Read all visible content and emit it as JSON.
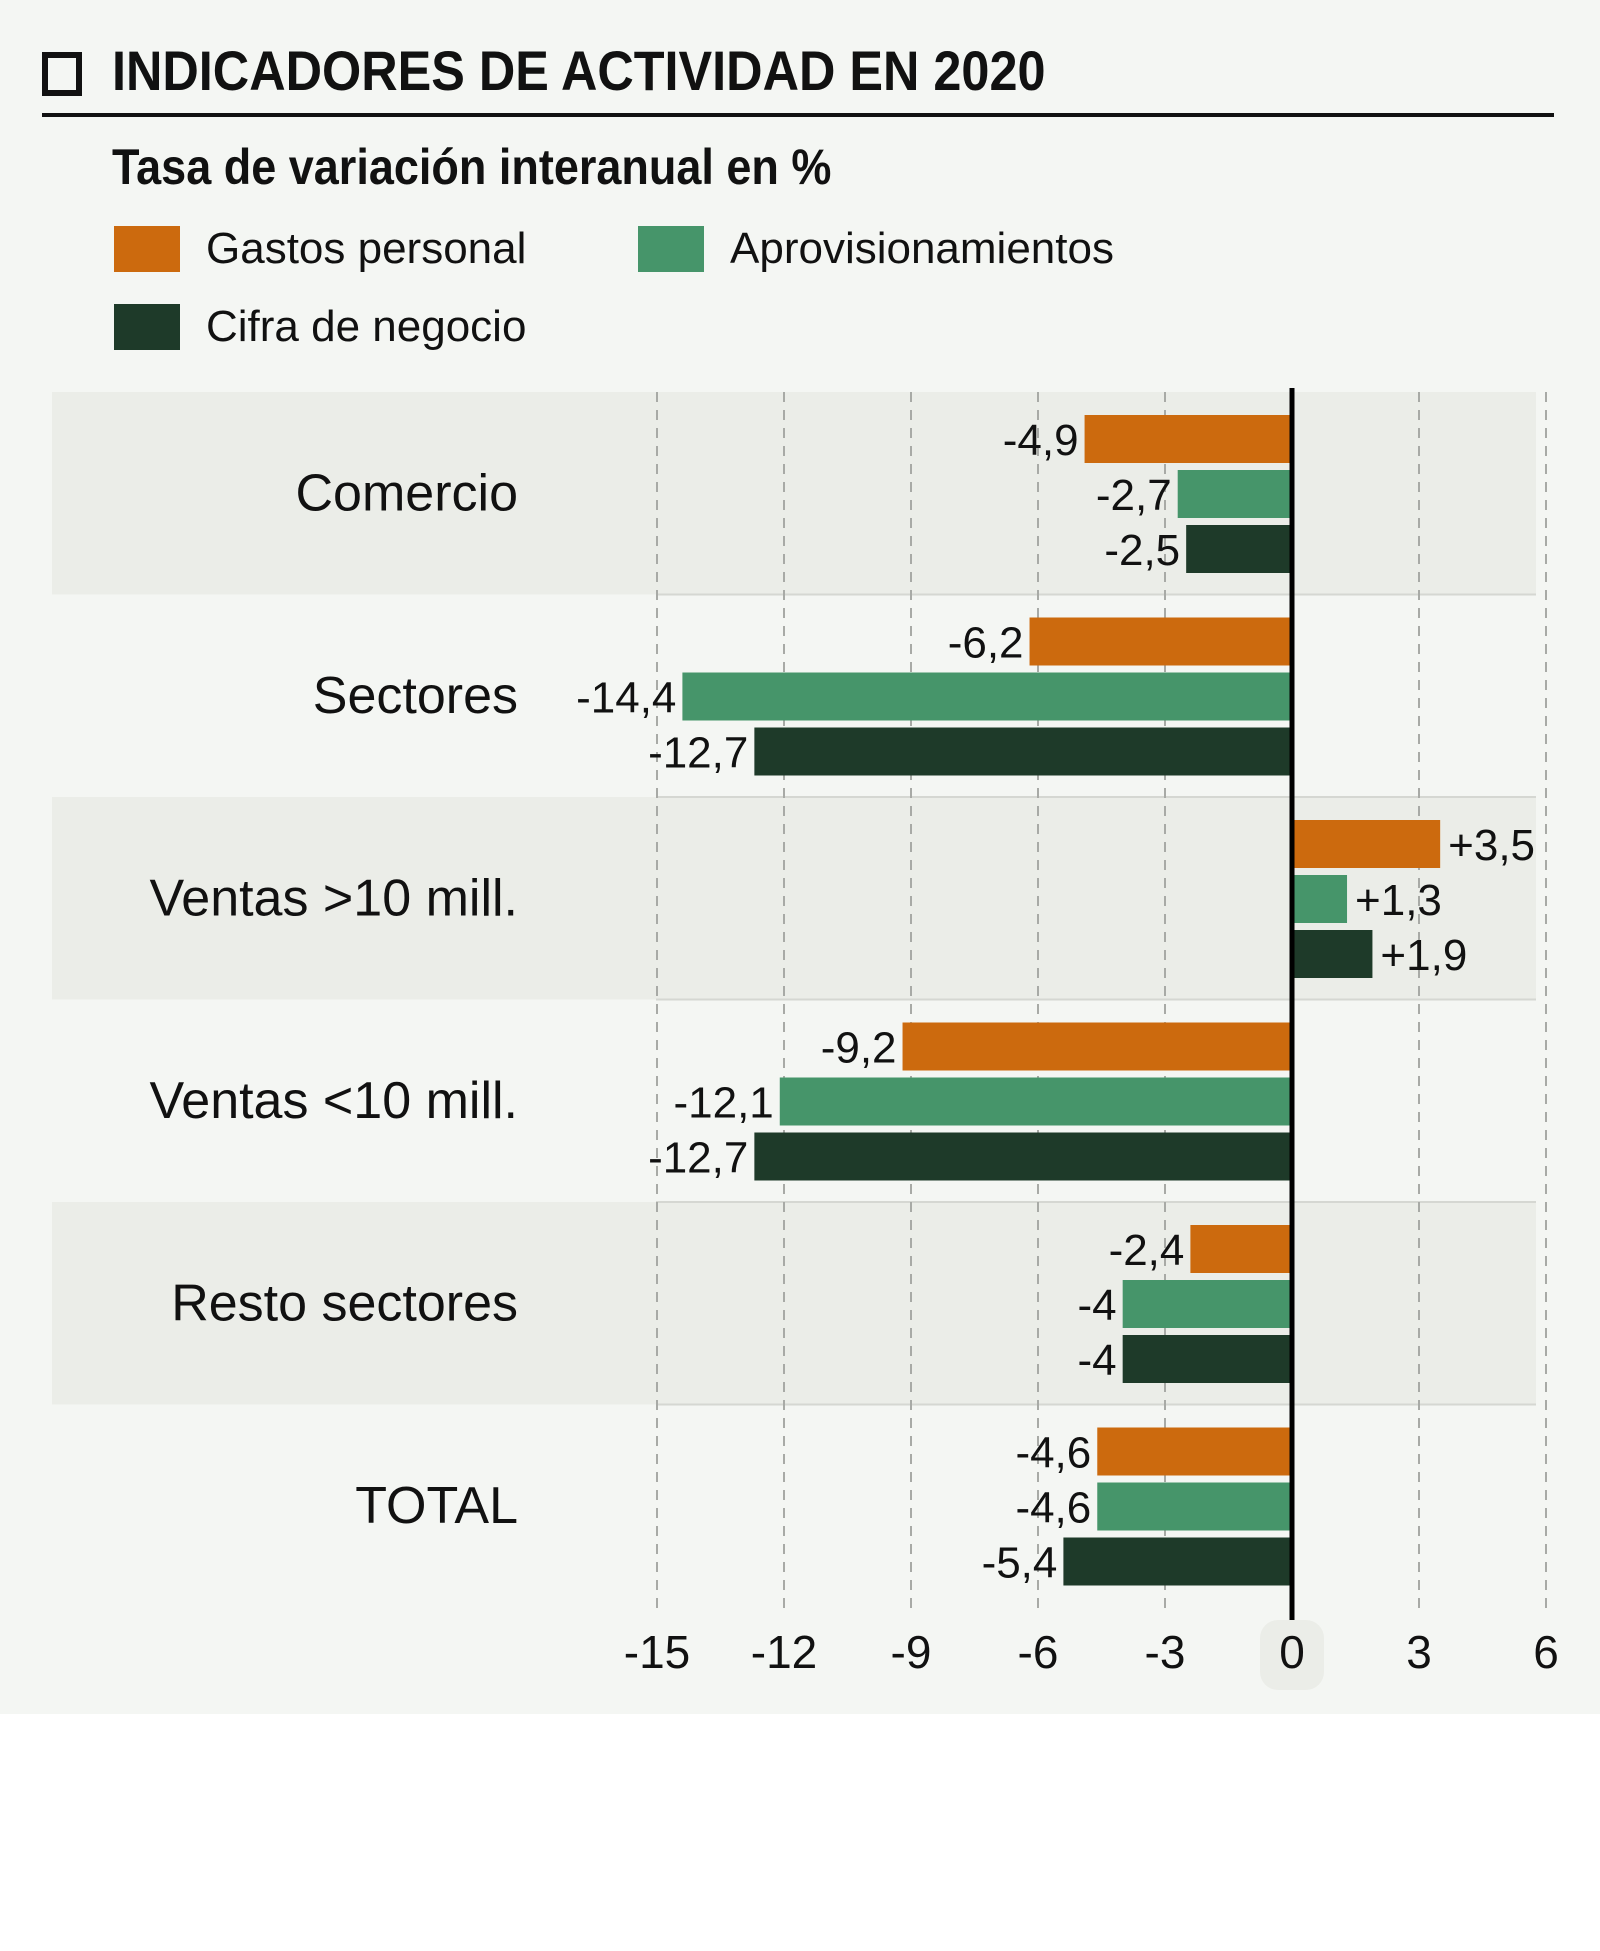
{
  "header": {
    "title": "INDICADORES DE ACTIVIDAD EN 2020",
    "subtitle": "Tasa de variación interanual en %"
  },
  "chart_data": {
    "type": "bar",
    "orientation": "horizontal",
    "categories": [
      "Comercio",
      "Sectores",
      "Ventas >10 mill.",
      "Ventas <10 mill.",
      "Resto sectores",
      "TOTAL"
    ],
    "series": [
      {
        "name": "Gastos personal",
        "color": "#cc6a0e",
        "values": [
          -4.9,
          -6.2,
          3.5,
          -9.2,
          -2.4,
          -4.6
        ],
        "labels": [
          "-4,9",
          "-6,2",
          "+3,5",
          "-9,2",
          "-2,4",
          "-4,6"
        ]
      },
      {
        "name": "Aprovisionamientos",
        "color": "#46956a",
        "values": [
          -2.7,
          -14.4,
          1.3,
          -12.1,
          -4,
          -4.6
        ],
        "labels": [
          "-2,7",
          "-14,4",
          "+1,3",
          "-12,1",
          "-4",
          "-4,6"
        ]
      },
      {
        "name": "Cifra de negocio",
        "color": "#1e3a29",
        "values": [
          -2.5,
          -12.7,
          1.9,
          -12.7,
          -4,
          -5.4
        ],
        "labels": [
          "-2,5",
          "-12,7",
          "+1,9",
          "-12,7",
          "-4",
          "-5,4"
        ]
      }
    ],
    "xlim": [
      -15,
      6
    ],
    "xticks": [
      -15,
      -12,
      -9,
      -6,
      -3,
      0,
      3,
      6
    ],
    "xtick_labels": [
      "-15",
      "-12",
      "-9",
      "-6",
      "-3",
      "0",
      "3",
      "6"
    ],
    "grid": "vertical dashed",
    "legend": "top-left"
  }
}
